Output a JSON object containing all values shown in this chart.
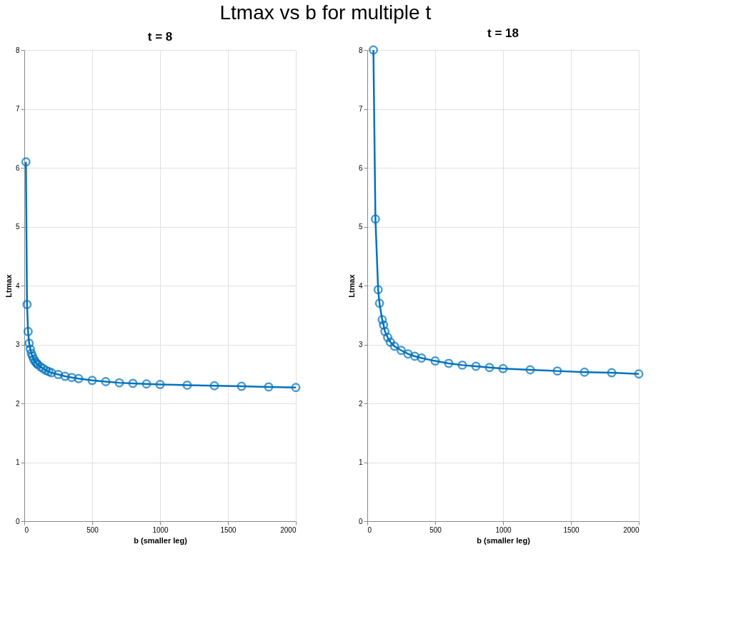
{
  "chart_data": [
    {
      "type": "line",
      "title": "t = 8",
      "xlabel": "b (smaller leg)",
      "ylabel": "Ltmax",
      "annotations": [
        "Ltmax vs b for multiple t"
      ],
      "marker": "circle",
      "line_style": "solid",
      "grid": true,
      "xlim": [
        0,
        2000
      ],
      "xticks": [
        0,
        500,
        1000,
        1500,
        2000
      ],
      "ylim": [
        0,
        8
      ],
      "yticks": [
        0,
        1,
        2,
        3,
        4,
        5,
        6,
        7,
        8
      ],
      "series": [
        {
          "color": "#0072bd",
          "x": [
            12,
            20,
            28,
            36,
            44,
            52,
            60,
            70,
            80,
            90,
            100,
            120,
            140,
            160,
            180,
            200,
            250,
            300,
            350,
            400,
            500,
            600,
            700,
            800,
            900,
            1000,
            1200,
            1400,
            1600,
            1800,
            2000
          ],
          "values": [
            6.1,
            3.68,
            3.22,
            3.02,
            2.92,
            2.85,
            2.8,
            2.75,
            2.71,
            2.68,
            2.66,
            2.62,
            2.59,
            2.56,
            2.54,
            2.52,
            2.49,
            2.46,
            2.44,
            2.42,
            2.39,
            2.37,
            2.35,
            2.34,
            2.33,
            2.32,
            2.31,
            2.3,
            2.29,
            2.28,
            2.27
          ]
        }
      ]
    },
    {
      "type": "line",
      "title": "t = 18",
      "xlabel": "b (smaller leg)",
      "ylabel": "Ltmax",
      "marker": "circle",
      "line_style": "solid",
      "grid": true,
      "xlim": [
        0,
        2000
      ],
      "xticks": [
        0,
        500,
        1000,
        1500,
        2000
      ],
      "ylim": [
        0,
        8
      ],
      "yticks": [
        0,
        1,
        2,
        3,
        4,
        5,
        6,
        7,
        8
      ],
      "series": [
        {
          "color": "#0072bd",
          "x": [
            45,
            60,
            80,
            90,
            110,
            120,
            130,
            150,
            170,
            200,
            250,
            300,
            350,
            400,
            500,
            600,
            700,
            800,
            900,
            1000,
            1200,
            1400,
            1600,
            1800,
            2000
          ],
          "values": [
            8.0,
            5.13,
            3.93,
            3.7,
            3.42,
            3.33,
            3.22,
            3.12,
            3.04,
            2.97,
            2.9,
            2.84,
            2.8,
            2.77,
            2.72,
            2.68,
            2.65,
            2.63,
            2.61,
            2.59,
            2.57,
            2.55,
            2.53,
            2.52,
            2.5
          ]
        }
      ]
    }
  ]
}
